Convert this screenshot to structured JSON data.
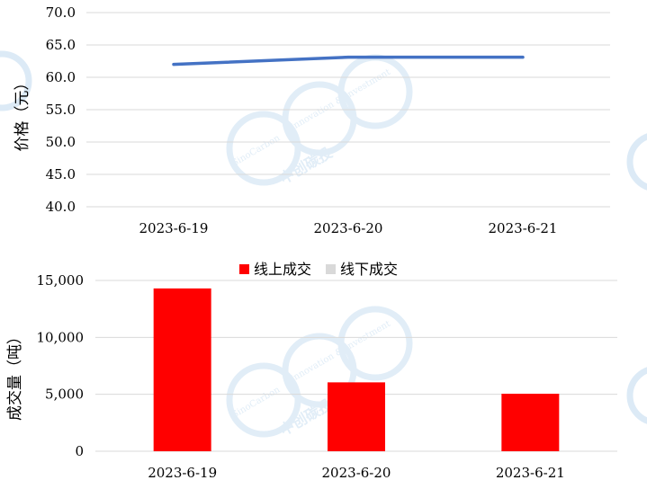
{
  "chart_data": [
    {
      "type": "line",
      "categories": [
        "2023-6-19",
        "2023-6-20",
        "2023-6-21"
      ],
      "series": [
        {
          "values": [
            62.0,
            63.1,
            63.1
          ],
          "color": "#4472C4"
        }
      ],
      "ylabel": "价格（元）",
      "ylim": [
        40,
        70
      ],
      "yticks": [
        "40.0",
        "45.0",
        "50.0",
        "55.0",
        "60.0",
        "65.0",
        "70.0"
      ],
      "grid": true
    },
    {
      "type": "bar",
      "categories": [
        "2023-6-19",
        "2023-6-20",
        "2023-6-21"
      ],
      "series": [
        {
          "name": "线上成交",
          "values": [
            14300,
            6050,
            5050
          ],
          "color": "#FF0000"
        },
        {
          "name": "线下成交",
          "values": [
            0,
            0,
            0
          ],
          "color": "#D9D9D9"
        }
      ],
      "ylabel": "成交量（吨）",
      "ylim": [
        0,
        15000
      ],
      "yticks": [
        "0",
        "5,000",
        "10,000",
        "15,000"
      ],
      "legend": "top",
      "grid": true
    }
  ],
  "watermark": {
    "brand": "中创碳投",
    "tagline_1": "SinoCarbon",
    "tagline_2": "Innovation & Investment",
    "color": "#DCEAF6"
  }
}
